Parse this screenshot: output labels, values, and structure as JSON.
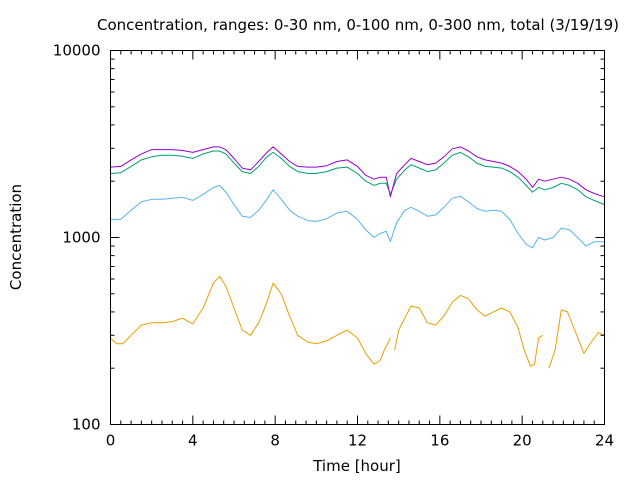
{
  "chart_data": {
    "type": "line",
    "title": "Concentration, ranges: 0-30 nm, 0-100 nm, 0-300 nm, total (3/19/19)",
    "xlabel": "Time [hour]",
    "ylabel": "Concentration",
    "xlim": [
      0,
      24
    ],
    "ylim": [
      100,
      10000
    ],
    "yscale": "log",
    "grid": false,
    "x_ticks": [
      {
        "v": 0,
        "label": "0"
      },
      {
        "v": 4,
        "label": "4"
      },
      {
        "v": 8,
        "label": "8"
      },
      {
        "v": 12,
        "label": "12"
      },
      {
        "v": 16,
        "label": "16"
      },
      {
        "v": 20,
        "label": "20"
      },
      {
        "v": 24,
        "label": "24"
      }
    ],
    "x_minor_step": 0.5,
    "y_ticks": [
      {
        "v": 100,
        "label": "100"
      },
      {
        "v": 1000,
        "label": "1000"
      },
      {
        "v": 10000,
        "label": "10000"
      }
    ],
    "series": [
      {
        "color": "#e69f00",
        "points": [
          [
            0,
            290
          ],
          [
            0.3,
            270
          ],
          [
            0.6,
            270
          ],
          [
            1.0,
            300
          ],
          [
            1.5,
            340
          ],
          [
            2.0,
            350
          ],
          [
            2.5,
            350
          ],
          [
            3.0,
            355
          ],
          [
            3.5,
            370
          ],
          [
            4.0,
            345
          ],
          [
            4.5,
            420
          ],
          [
            5.0,
            570
          ],
          [
            5.3,
            620
          ],
          [
            5.6,
            550
          ],
          [
            6.0,
            420
          ],
          [
            6.4,
            320
          ],
          [
            6.8,
            300
          ],
          [
            7.2,
            350
          ],
          [
            7.6,
            450
          ],
          [
            7.9,
            570
          ],
          [
            8.3,
            500
          ],
          [
            8.7,
            380
          ],
          [
            9.1,
            300
          ],
          [
            9.6,
            275
          ],
          [
            10.0,
            270
          ],
          [
            10.5,
            280
          ],
          [
            11.0,
            300
          ],
          [
            11.5,
            320
          ],
          [
            12.0,
            290
          ],
          [
            12.4,
            240
          ],
          [
            12.8,
            210
          ],
          [
            13.1,
            220
          ],
          [
            13.3,
            250
          ],
          [
            13.6,
            290
          ],
          null,
          [
            13.8,
            250
          ],
          [
            14.0,
            320
          ],
          [
            14.3,
            370
          ],
          [
            14.6,
            430
          ],
          [
            15.0,
            420
          ],
          [
            15.4,
            350
          ],
          [
            15.8,
            340
          ],
          [
            16.2,
            380
          ],
          [
            16.6,
            450
          ],
          [
            17.0,
            490
          ],
          [
            17.4,
            470
          ],
          [
            17.8,
            410
          ],
          [
            18.2,
            380
          ],
          [
            18.6,
            400
          ],
          [
            19.0,
            420
          ],
          [
            19.4,
            400
          ],
          [
            19.8,
            330
          ],
          [
            20.1,
            250
          ],
          [
            20.4,
            205
          ],
          [
            20.6,
            210
          ],
          [
            20.8,
            290
          ],
          [
            21.0,
            300
          ],
          null,
          [
            21.3,
            200
          ],
          [
            21.6,
            250
          ],
          [
            21.9,
            410
          ],
          [
            22.2,
            400
          ],
          [
            22.6,
            310
          ],
          [
            23.0,
            240
          ],
          [
            23.4,
            280
          ],
          [
            23.7,
            310
          ],
          [
            24.0,
            300
          ]
        ]
      },
      {
        "color": "#56b4e9",
        "points": [
          [
            0,
            1250
          ],
          [
            0.5,
            1250
          ],
          [
            1.0,
            1400
          ],
          [
            1.5,
            1550
          ],
          [
            2.0,
            1600
          ],
          [
            2.5,
            1600
          ],
          [
            3.0,
            1620
          ],
          [
            3.5,
            1640
          ],
          [
            4.0,
            1580
          ],
          [
            4.5,
            1700
          ],
          [
            5.0,
            1850
          ],
          [
            5.3,
            1900
          ],
          [
            5.6,
            1750
          ],
          [
            6.0,
            1500
          ],
          [
            6.4,
            1300
          ],
          [
            6.8,
            1280
          ],
          [
            7.2,
            1400
          ],
          [
            7.6,
            1600
          ],
          [
            7.9,
            1800
          ],
          [
            8.3,
            1600
          ],
          [
            8.7,
            1400
          ],
          [
            9.1,
            1300
          ],
          [
            9.6,
            1230
          ],
          [
            10.0,
            1220
          ],
          [
            10.5,
            1260
          ],
          [
            11.0,
            1350
          ],
          [
            11.5,
            1380
          ],
          [
            12.0,
            1250
          ],
          [
            12.4,
            1100
          ],
          [
            12.8,
            1000
          ],
          [
            13.1,
            1050
          ],
          [
            13.4,
            1080
          ],
          [
            13.6,
            950
          ],
          [
            13.9,
            1200
          ],
          [
            14.3,
            1400
          ],
          [
            14.6,
            1450
          ],
          [
            15.0,
            1380
          ],
          [
            15.4,
            1300
          ],
          [
            15.8,
            1320
          ],
          [
            16.2,
            1450
          ],
          [
            16.6,
            1620
          ],
          [
            17.0,
            1660
          ],
          [
            17.4,
            1550
          ],
          [
            17.8,
            1430
          ],
          [
            18.2,
            1380
          ],
          [
            18.6,
            1400
          ],
          [
            19.0,
            1380
          ],
          [
            19.4,
            1250
          ],
          [
            19.8,
            1050
          ],
          [
            20.2,
            920
          ],
          [
            20.5,
            880
          ],
          [
            20.8,
            1000
          ],
          [
            21.1,
            970
          ],
          [
            21.5,
            1000
          ],
          [
            21.9,
            1120
          ],
          [
            22.3,
            1100
          ],
          [
            22.7,
            1000
          ],
          [
            23.1,
            900
          ],
          [
            23.5,
            950
          ],
          [
            24.0,
            950
          ]
        ]
      },
      {
        "color": "#009e73",
        "points": [
          [
            0,
            2200
          ],
          [
            0.5,
            2220
          ],
          [
            1.0,
            2400
          ],
          [
            1.5,
            2600
          ],
          [
            2.0,
            2700
          ],
          [
            2.5,
            2750
          ],
          [
            3.0,
            2750
          ],
          [
            3.5,
            2720
          ],
          [
            4.0,
            2650
          ],
          [
            4.5,
            2800
          ],
          [
            5.0,
            2900
          ],
          [
            5.3,
            2900
          ],
          [
            5.6,
            2800
          ],
          [
            6.0,
            2500
          ],
          [
            6.4,
            2250
          ],
          [
            6.8,
            2200
          ],
          [
            7.2,
            2400
          ],
          [
            7.6,
            2700
          ],
          [
            7.9,
            2850
          ],
          [
            8.3,
            2650
          ],
          [
            8.7,
            2400
          ],
          [
            9.1,
            2250
          ],
          [
            9.6,
            2200
          ],
          [
            10.0,
            2200
          ],
          [
            10.5,
            2250
          ],
          [
            11.0,
            2350
          ],
          [
            11.5,
            2380
          ],
          [
            12.0,
            2200
          ],
          [
            12.4,
            2000
          ],
          [
            12.8,
            1900
          ],
          [
            13.1,
            1950
          ],
          [
            13.4,
            1950
          ],
          [
            13.6,
            1700
          ],
          [
            13.9,
            2050
          ],
          [
            14.3,
            2300
          ],
          [
            14.6,
            2450
          ],
          [
            15.0,
            2350
          ],
          [
            15.4,
            2250
          ],
          [
            15.8,
            2300
          ],
          [
            16.2,
            2500
          ],
          [
            16.6,
            2750
          ],
          [
            17.0,
            2850
          ],
          [
            17.4,
            2700
          ],
          [
            17.8,
            2500
          ],
          [
            18.2,
            2400
          ],
          [
            18.6,
            2380
          ],
          [
            19.0,
            2350
          ],
          [
            19.4,
            2250
          ],
          [
            19.8,
            2100
          ],
          [
            20.2,
            1900
          ],
          [
            20.5,
            1750
          ],
          [
            20.8,
            1850
          ],
          [
            21.1,
            1800
          ],
          [
            21.5,
            1850
          ],
          [
            21.9,
            1950
          ],
          [
            22.3,
            1900
          ],
          [
            22.7,
            1800
          ],
          [
            23.1,
            1650
          ],
          [
            23.5,
            1580
          ],
          [
            24.0,
            1500
          ]
        ]
      },
      {
        "color": "#9400d3",
        "points": [
          [
            0,
            2380
          ],
          [
            0.5,
            2400
          ],
          [
            1.0,
            2600
          ],
          [
            1.5,
            2800
          ],
          [
            2.0,
            2950
          ],
          [
            2.5,
            2950
          ],
          [
            3.0,
            2950
          ],
          [
            3.5,
            2920
          ],
          [
            4.0,
            2850
          ],
          [
            4.5,
            2950
          ],
          [
            5.0,
            3050
          ],
          [
            5.3,
            3050
          ],
          [
            5.6,
            2950
          ],
          [
            6.0,
            2650
          ],
          [
            6.4,
            2350
          ],
          [
            6.8,
            2300
          ],
          [
            7.2,
            2550
          ],
          [
            7.6,
            2850
          ],
          [
            7.9,
            3050
          ],
          [
            8.3,
            2800
          ],
          [
            8.7,
            2550
          ],
          [
            9.1,
            2400
          ],
          [
            9.6,
            2380
          ],
          [
            10.0,
            2380
          ],
          [
            10.5,
            2420
          ],
          [
            11.0,
            2550
          ],
          [
            11.5,
            2600
          ],
          [
            12.0,
            2400
          ],
          [
            12.4,
            2150
          ],
          [
            12.8,
            2050
          ],
          [
            13.1,
            2100
          ],
          [
            13.4,
            2100
          ],
          [
            13.6,
            1650
          ],
          [
            13.9,
            2200
          ],
          [
            14.3,
            2450
          ],
          [
            14.6,
            2650
          ],
          [
            15.0,
            2550
          ],
          [
            15.4,
            2450
          ],
          [
            15.8,
            2500
          ],
          [
            16.2,
            2700
          ],
          [
            16.6,
            2980
          ],
          [
            17.0,
            3050
          ],
          [
            17.4,
            2900
          ],
          [
            17.8,
            2700
          ],
          [
            18.2,
            2600
          ],
          [
            18.6,
            2550
          ],
          [
            19.0,
            2500
          ],
          [
            19.4,
            2400
          ],
          [
            19.8,
            2250
          ],
          [
            20.2,
            2050
          ],
          [
            20.5,
            1850
          ],
          [
            20.8,
            2050
          ],
          [
            21.1,
            2000
          ],
          [
            21.5,
            2050
          ],
          [
            21.9,
            2100
          ],
          [
            22.3,
            2050
          ],
          [
            22.7,
            1950
          ],
          [
            23.1,
            1800
          ],
          [
            23.5,
            1720
          ],
          [
            24.0,
            1650
          ]
        ]
      }
    ]
  }
}
